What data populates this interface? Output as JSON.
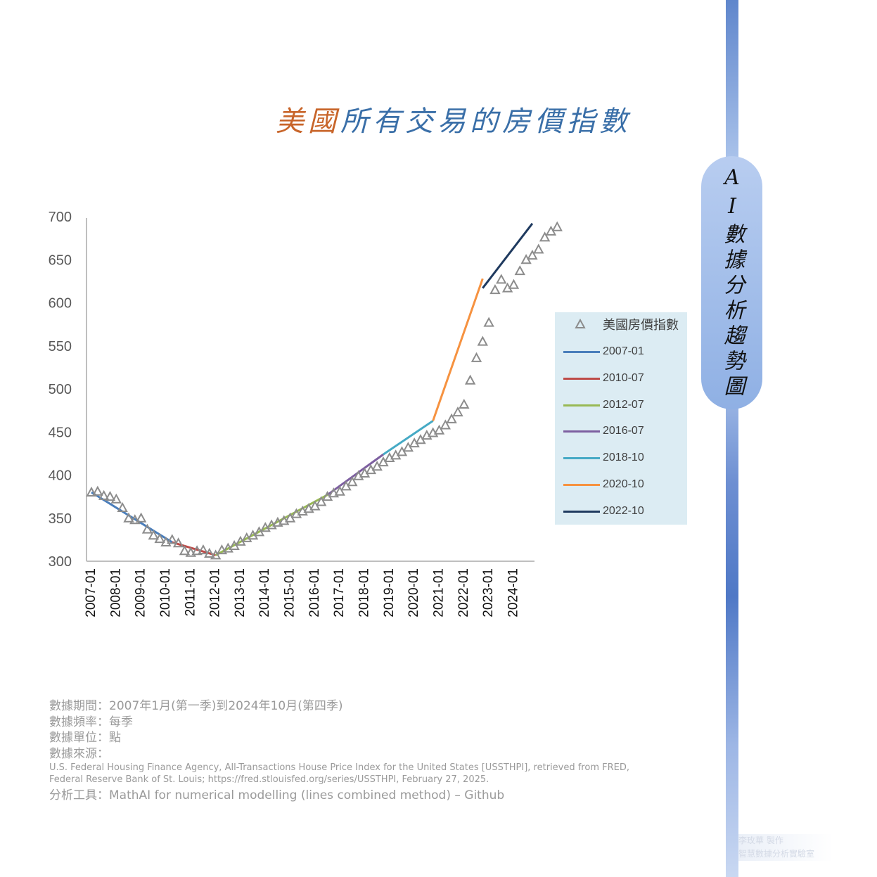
{
  "title": {
    "part1": "美國",
    "part2": "所有交易的房價指數"
  },
  "side_label": "AI數據分析趨勢圖",
  "chart_data": {
    "type": "line",
    "title": "美國所有交易的房價指數",
    "xlabel": "",
    "ylabel": "",
    "ylim": [
      300,
      700
    ],
    "yticks": [
      300,
      350,
      400,
      450,
      500,
      550,
      600,
      650,
      700
    ],
    "xticks": [
      "2007-01",
      "2008-01",
      "2009-01",
      "2010-01",
      "2011-01",
      "2012-01",
      "2013-01",
      "2014-01",
      "2015-01",
      "2016-01",
      "2017-01",
      "2018-01",
      "2019-01",
      "2020-01",
      "2021-01",
      "2022-01",
      "2023-01",
      "2024-01"
    ],
    "grid": false,
    "legend_position": "right",
    "points_series_name": "美國房價指數",
    "quarters_start": "2007-01",
    "points": [
      380,
      381,
      376,
      375,
      372,
      362,
      350,
      348,
      350,
      337,
      330,
      326,
      322,
      325,
      321,
      312,
      310,
      312,
      313,
      309,
      307,
      313,
      315,
      318,
      323,
      327,
      330,
      334,
      339,
      342,
      345,
      347,
      350,
      355,
      358,
      361,
      364,
      369,
      375,
      379,
      381,
      387,
      392,
      399,
      402,
      406,
      410,
      415,
      420,
      423,
      427,
      432,
      437,
      441,
      446,
      449,
      452,
      458,
      465,
      473,
      482,
      510,
      536,
      555,
      577,
      615,
      627,
      617,
      621,
      637,
      650,
      655,
      662,
      676,
      683,
      688
    ],
    "segments": [
      {
        "name": "2007-01",
        "color": "#4a7ebb",
        "start": 380,
        "end": 322,
        "start_q": 0,
        "end_q": 13
      },
      {
        "name": "2010-07",
        "color": "#be4b48",
        "start": 322,
        "end": 307,
        "start_q": 13,
        "end_q": 20
      },
      {
        "name": "2012-07",
        "color": "#98b954",
        "start": 307,
        "end": 377,
        "start_q": 20,
        "end_q": 38
      },
      {
        "name": "2016-07",
        "color": "#7d5fa0",
        "start": 377,
        "end": 424,
        "start_q": 38,
        "end_q": 47
      },
      {
        "name": "2018-10",
        "color": "#46aac5",
        "start": 424,
        "end": 463,
        "start_q": 47,
        "end_q": 55
      },
      {
        "name": "2020-10",
        "color": "#f69240",
        "start": 463,
        "end": 628,
        "start_q": 55,
        "end_q": 63
      },
      {
        "name": "2022-10",
        "color": "#1f3a5f",
        "start": 617,
        "end": 692,
        "start_q": 63,
        "end_q": 71
      }
    ]
  },
  "footer": {
    "period": "數據期間：2007年1月(第一季)到2024年10月(第四季)",
    "frequency": "數據頻率：每季",
    "unit": "數據單位：點",
    "source_label": "數據來源：",
    "source_line1": "U.S. Federal Housing Finance Agency, All-Transactions House Price Index for the United States [USSTHPI], retrieved from FRED,",
    "source_line2": "Federal Reserve Bank of St. Louis; https://fred.stlouisfed.org/series/USSTHPI, February 27, 2025.",
    "tool": "分析工具：MathAI for numerical modelling (lines combined method) – Github"
  },
  "credit": {
    "line1": "李玫華 製作",
    "line2": "智慧數據分析實驗室"
  },
  "colors": {
    "axis": "#bfbfbf",
    "tick_text": "#595959",
    "marker": "#8c8c8c"
  }
}
